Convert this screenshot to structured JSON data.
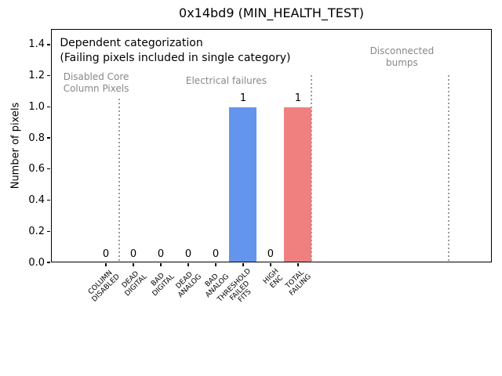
{
  "figure": {
    "background": "#ffffff"
  },
  "chart_data": {
    "type": "bar",
    "title": "0x14bd9 (MIN_HEALTH_TEST)",
    "ylabel": "Number of pixels",
    "xlabel": "",
    "grid": false,
    "legend": null,
    "ylim": [
      0,
      1.5
    ],
    "xlim": [
      -2,
      14.06
    ],
    "yticks": [
      "0.0",
      "0.2",
      "0.4",
      "0.6",
      "0.8",
      "1.0",
      "1.2",
      "1.4"
    ],
    "bar_width": 1.0,
    "categories": [
      {
        "label_lines": [
          "COLUMN",
          "DISABLED"
        ],
        "value": 0,
        "color": "#6495ed"
      },
      {
        "label_lines": [
          "DEAD",
          "DIGITAL"
        ],
        "value": 0,
        "color": "#6495ed"
      },
      {
        "label_lines": [
          "BAD",
          "DIGITAL"
        ],
        "value": 0,
        "color": "#6495ed"
      },
      {
        "label_lines": [
          "DEAD",
          "ANALOG"
        ],
        "value": 0,
        "color": "#6495ed"
      },
      {
        "label_lines": [
          "BAD",
          "ANALOG"
        ],
        "value": 0,
        "color": "#6495ed"
      },
      {
        "label_lines": [
          "THRESHOLD",
          "FAILED",
          "FITS"
        ],
        "value": 1,
        "color": "#6495ed"
      },
      {
        "label_lines": [
          "HIGH",
          "ENC"
        ],
        "value": 0,
        "color": "#6495ed"
      },
      {
        "label_lines": [
          "TOTAL",
          "FAILING"
        ],
        "value": 1,
        "color": "#f08080"
      }
    ],
    "value_labels": [
      "0",
      "0",
      "0",
      "0",
      "0",
      "1",
      "0",
      "1"
    ],
    "annotations": [
      {
        "name": "dependent-categorization-note",
        "lines": [
          "Dependent categorization"
        ],
        "x": -1.66,
        "y_top": 1.445,
        "color": "#000000",
        "size": 14,
        "align": "left"
      },
      {
        "name": "single-category-note",
        "lines": [
          "(Failing pixels included in single category)"
        ],
        "x": -1.66,
        "y_top": 1.349,
        "color": "#000000",
        "size": 14,
        "align": "left"
      },
      {
        "name": "region-label-disabled-core-column-pixels",
        "lines": [
          "Disabled Core",
          "Column Pixels"
        ],
        "x": -0.34,
        "y_top": 1.228,
        "color": "#888888",
        "size": 12,
        "align": "center"
      },
      {
        "name": "region-label-electrical-failures",
        "lines": [
          "Electrical failures"
        ],
        "x": 4.4,
        "y_top": 1.203,
        "color": "#888888",
        "size": 12,
        "align": "center"
      },
      {
        "name": "region-label-disconnected-bumps",
        "lines": [
          "Disconnected",
          "bumps"
        ],
        "x": 10.8,
        "y_top": 1.394,
        "color": "#888888",
        "size": 12,
        "align": "center"
      }
    ],
    "dividers": [
      {
        "x": 0.5,
        "y_max": 1.05
      },
      {
        "x": 7.5,
        "y_max": 1.2
      },
      {
        "x": 12.5,
        "y_max": 1.2
      }
    ],
    "divider_color": "#9a9a9a"
  }
}
